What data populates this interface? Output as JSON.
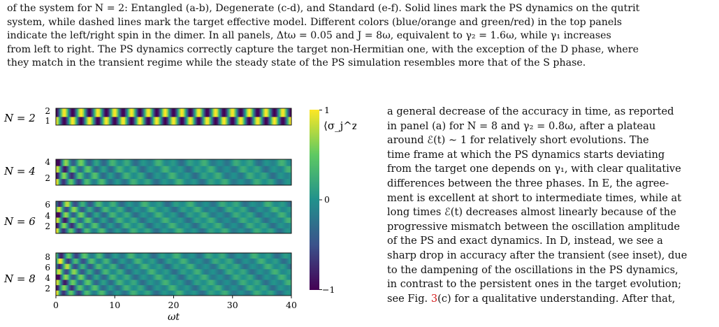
{
  "caption": {
    "lines": [
      "of the system for N = 2: Entangled (a-b), Degenerate (c-d), and Standard (e-f). Solid lines mark the PS dynamics on the qutrit",
      "system, while dashed lines mark the target effective model. Different colors (blue/orange and green/red) in the top panels",
      "indicate the left/right spin in the dimer. In all panels, Δtω = 0.05 and J = 8ω, equivalent to γ₂ = 1.6ω, while γ₁ increases",
      "from left to right. The PS dynamics correctly capture the target non-Hermitian one, with the exception of the D phase, where",
      "they match in the transient regime while the steady state of the PS simulation resembles more that of the S phase."
    ]
  },
  "figure": {
    "panels": [
      {
        "label": "N = 2",
        "yticks": [
          "2",
          "1"
        ]
      },
      {
        "label": "N = 4",
        "yticks": [
          "4",
          "2"
        ]
      },
      {
        "label": "N = 6",
        "yticks": [
          "6",
          "4",
          "2"
        ]
      },
      {
        "label": "N = 8",
        "yticks": [
          "8",
          "6",
          "4",
          "2"
        ]
      }
    ],
    "xticks": [
      "0",
      "10",
      "20",
      "30",
      "40"
    ],
    "xlabel": "ωt",
    "colorbar": {
      "label": "⟨σ_j^z⟩",
      "ticks": [
        "1",
        "0",
        "−1"
      ],
      "colormap": "viridis"
    }
  },
  "chart_data": [
    {
      "type": "heatmap",
      "panel": "N = 2",
      "xlabel": "ωt",
      "xlim": [
        0,
        40
      ],
      "ylim": [
        1,
        2
      ],
      "zlim": [
        -1,
        1
      ],
      "colormap": "viridis"
    },
    {
      "type": "heatmap",
      "panel": "N = 4",
      "xlabel": "ωt",
      "xlim": [
        0,
        40
      ],
      "ylim": [
        1,
        4
      ],
      "zlim": [
        -1,
        1
      ],
      "colormap": "viridis"
    },
    {
      "type": "heatmap",
      "panel": "N = 6",
      "xlabel": "ωt",
      "xlim": [
        0,
        40
      ],
      "ylim": [
        1,
        6
      ],
      "zlim": [
        -1,
        1
      ],
      "colormap": "viridis"
    },
    {
      "type": "heatmap",
      "panel": "N = 8",
      "xlabel": "ωt",
      "xlim": [
        0,
        40
      ],
      "ylim": [
        1,
        8
      ],
      "zlim": [
        -1,
        1
      ],
      "colormap": "viridis"
    }
  ],
  "body": {
    "lines": [
      "a general decrease of the accuracy in time, as reported",
      "in panel (a) for N = 8 and γ₂ = 0.8ω, after a plateau",
      "around ℰ(t) ∼ 1 for relatively short evolutions.   The",
      "time frame at which the PS dynamics starts deviating",
      "from the target one depends on γ₁, with clear qualitative",
      "differences between the three phases. In E, the agree-",
      "ment is excellent at short to intermediate times, while at",
      "long times ℰ(t) decreases almost linearly because of the",
      "progressive mismatch between the oscillation amplitude",
      "of the PS and exact dynamics. In D, instead, we see a",
      "sharp drop in accuracy after the transient (see inset), due",
      "to the dampening of the oscillations in the PS dynamics,",
      "in contrast to the persistent ones in the target evolution;"
    ],
    "last_line_before": "see Fig. ",
    "last_line_ref": "3",
    "last_line_after": "(c) for a qualitative understanding. After that,"
  }
}
